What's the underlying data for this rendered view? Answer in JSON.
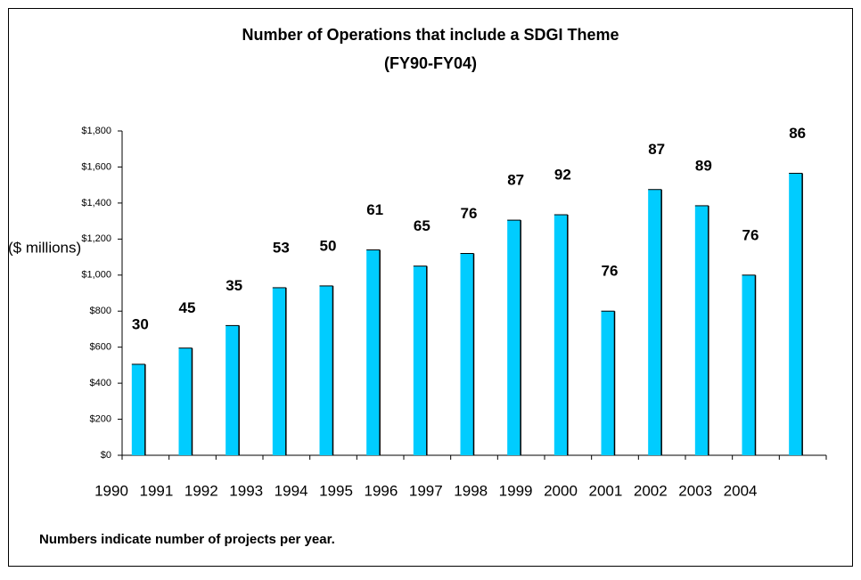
{
  "chart_data": {
    "type": "bar",
    "title": "Number of Operations that include a SDGI Theme",
    "subtitle": "(FY90-FY04)",
    "y_label": "($ millions)",
    "note": "Numbers indicate number of projects per year.",
    "categories": [
      "1990",
      "1991",
      "1992",
      "1993",
      "1994",
      "1995",
      "1996",
      "1997",
      "1998",
      "1999",
      "2000",
      "2001",
      "2002",
      "2003",
      "2004"
    ],
    "values": [
      505,
      595,
      720,
      930,
      940,
      1140,
      1050,
      1120,
      1305,
      1335,
      800,
      1475,
      1385,
      1000,
      1565
    ],
    "project_counts": [
      30,
      45,
      35,
      53,
      50,
      61,
      65,
      76,
      87,
      92,
      76,
      87,
      89,
      76,
      86
    ],
    "color": "#00ccff",
    "ylim": [
      0,
      1800
    ],
    "yticks": [
      {
        "value": 0,
        "label": "$0"
      },
      {
        "value": 200,
        "label": "$200"
      },
      {
        "value": 400,
        "label": "$400"
      },
      {
        "value": 600,
        "label": "$600"
      },
      {
        "value": 800,
        "label": "$800"
      },
      {
        "value": 1000,
        "label": "$1,000"
      },
      {
        "value": 1200,
        "label": "$1,200"
      },
      {
        "value": 1400,
        "label": "$1,400"
      },
      {
        "value": 1600,
        "label": "$1,600"
      },
      {
        "value": 1800,
        "label": "$1,800"
      }
    ],
    "grid": false
  }
}
